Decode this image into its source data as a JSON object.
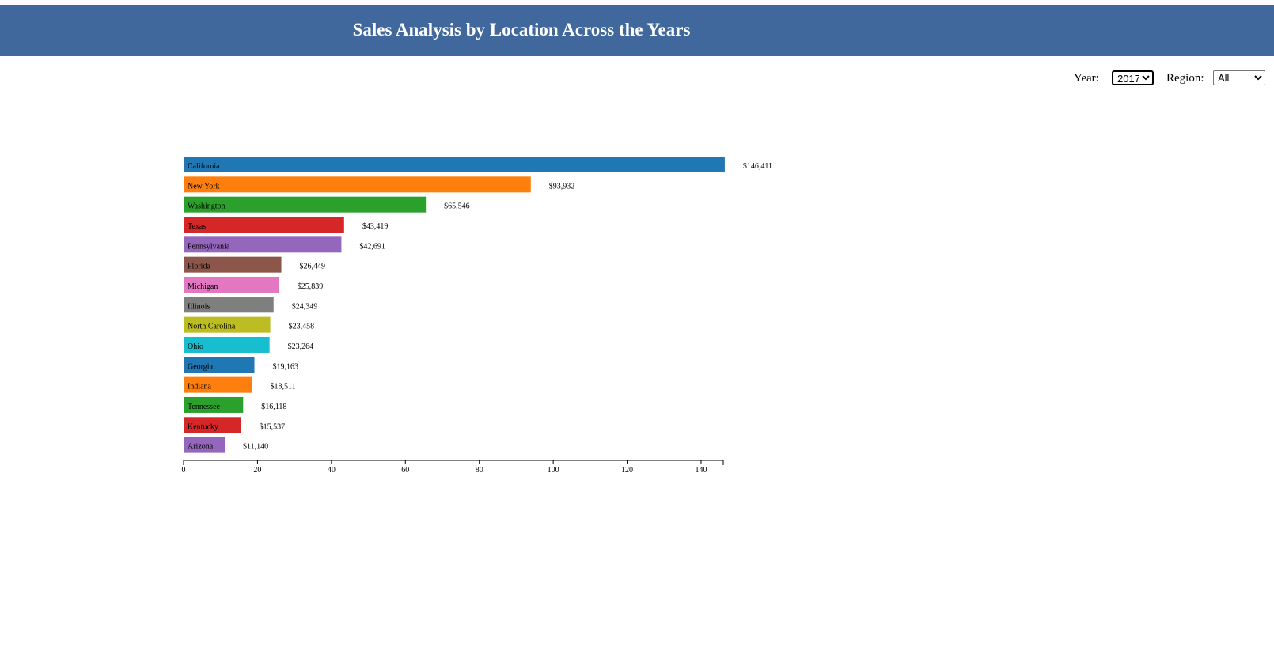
{
  "header": {
    "title": "Sales Analysis by Location Across the Years"
  },
  "controls": {
    "year_label": "Year:",
    "year_value": "2017",
    "region_label": "Region:",
    "region_value": "All"
  },
  "chart_data": {
    "type": "bar",
    "orientation": "horizontal",
    "title": "",
    "xlabel": "",
    "ylabel": "",
    "xlim": [
      0,
      146
    ],
    "x_ticks": [
      0,
      20,
      40,
      60,
      80,
      100,
      120,
      140
    ],
    "grid": false,
    "legend": "none",
    "categories": [
      "California",
      "New York",
      "Washington",
      "Texas",
      "Pennsylvania",
      "Florida",
      "Michigan",
      "Illinois",
      "North Carolina",
      "Ohio",
      "Georgia",
      "Indiana",
      "Tennessee",
      "Kentucky",
      "Arizona"
    ],
    "values": [
      146.411,
      93.932,
      65.546,
      43.419,
      42.691,
      26.449,
      25.839,
      24.349,
      23.458,
      23.264,
      19.163,
      18.511,
      16.118,
      15.537,
      11.14
    ],
    "value_labels": [
      "$146,411",
      "$93,932",
      "$65,546",
      "$43,419",
      "$42,691",
      "$26,449",
      "$25,839",
      "$24,349",
      "$23,458",
      "$23,264",
      "$19,163",
      "$18,511",
      "$16,118",
      "$15,537",
      "$11,140"
    ],
    "colors": [
      "#1f77b4",
      "#ff7f0e",
      "#2ca02c",
      "#d62728",
      "#9467bd",
      "#8c564b",
      "#e377c2",
      "#7f7f7f",
      "#bcbd22",
      "#17becf",
      "#1f77b4",
      "#ff7f0e",
      "#2ca02c",
      "#d62728",
      "#9467bd"
    ]
  }
}
